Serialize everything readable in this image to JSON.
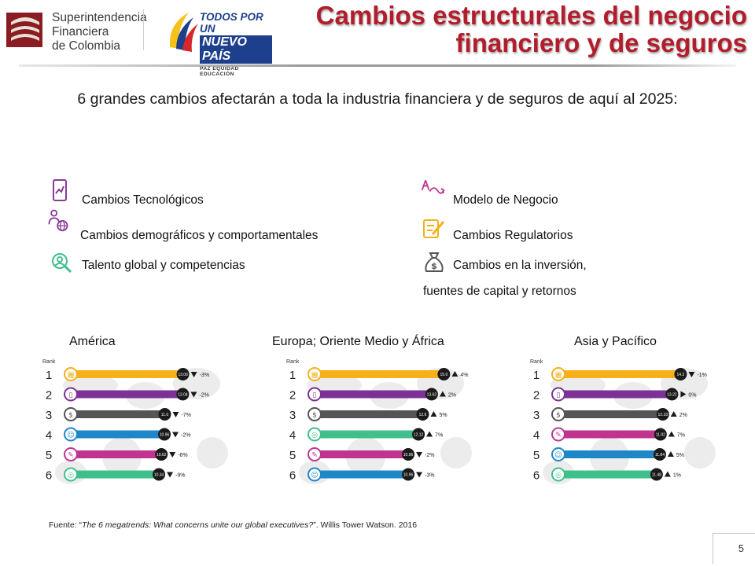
{
  "header": {
    "sfc_logo": {
      "line1": "Superintendencia",
      "line2": "Financiera",
      "line3": "de Colombia"
    },
    "gov_logo": {
      "line1": "TODOS POR UN",
      "line2": "NUEVO PAÍS",
      "line3": "PAZ  EQUIDAD  EDUCACIÓN"
    },
    "title_line1": "Cambios estructurales del negocio",
    "title_line2": "financiero y de seguros"
  },
  "intro": "6 grandes cambios afectarán a toda la industria financiera y de seguros de aquí al 2025:",
  "trends": {
    "left": [
      {
        "label": "Cambios Tecnológicos",
        "icon": "tablet-chart-icon"
      },
      {
        "label": "Cambios demográficos y comportamentales",
        "icon": "people-globe-icon"
      },
      {
        "label": "Talento global y competencias",
        "icon": "talent-search-icon"
      }
    ],
    "right": [
      {
        "label": "Modelo de Negocio",
        "icon": "business-model-icon"
      },
      {
        "label": "Cambios Regulatorios",
        "icon": "regulatory-pen-icon"
      },
      {
        "label": "Cambios en la inversión,",
        "label2": "fuentes de capital y retornos",
        "icon": "money-bag-icon"
      }
    ]
  },
  "colors": {
    "title_red": "#b21d2b",
    "purple_icon": "#8a3a9a",
    "tech": "#f5b01a",
    "model": "#7b3294",
    "invest": "#555555",
    "demo": "#1e87c8",
    "business": "#c0348f",
    "talent": "#3fbf8c"
  },
  "chart_data": [
    {
      "type": "bar",
      "title": "América",
      "rank_label": "Rank",
      "categories": [
        "1",
        "2",
        "3",
        "4",
        "5",
        "6"
      ],
      "icons": [
        "tech",
        "model",
        "invest",
        "demo",
        "business",
        "talent"
      ],
      "values": [
        13.06,
        13.04,
        11.0,
        10.96,
        10.62,
        10.34
      ],
      "value_labels": [
        "13.06",
        "13.04",
        "11.0",
        "10.96",
        "10.62",
        "10.34"
      ],
      "change_labels": [
        "-3%",
        "-2%",
        "-7%",
        "-2%",
        "-6%",
        "-9%"
      ],
      "change_dir": [
        "down",
        "down",
        "down",
        "down",
        "down",
        "down"
      ]
    },
    {
      "type": "bar",
      "title": "Europa; Oriente Medio y África",
      "rank_label": "Rank",
      "categories": [
        "1",
        "2",
        "3",
        "4",
        "5",
        "6"
      ],
      "icons": [
        "tech",
        "model",
        "invest",
        "talent",
        "business",
        "demo"
      ],
      "values": [
        15.0,
        13.62,
        12.6,
        12.12,
        10.96,
        10.96
      ],
      "value_labels": [
        "15.0",
        "13.62",
        "12.6",
        "12.12",
        "10.96",
        "10.96"
      ],
      "change_labels": [
        "4%",
        "2%",
        "5%",
        "7%",
        "-2%",
        "-3%"
      ],
      "change_dir": [
        "up",
        "up",
        "up",
        "up",
        "down",
        "down"
      ]
    },
    {
      "type": "bar",
      "title": "Asia y Pacífico",
      "rank_label": "Rank",
      "categories": [
        "1",
        "2",
        "3",
        "4",
        "5",
        "6"
      ],
      "icons": [
        "tech",
        "model",
        "invest",
        "business",
        "demo",
        "talent"
      ],
      "values": [
        14.2,
        13.22,
        12.18,
        11.92,
        11.84,
        11.48
      ],
      "value_labels": [
        "14.2",
        "13.22",
        "12.18",
        "11.92",
        "11.84",
        "11.48"
      ],
      "change_labels": [
        "-1%",
        "0%",
        "2%",
        "7%",
        "5%",
        "1%"
      ],
      "change_dir": [
        "down",
        "flat",
        "up",
        "up",
        "up",
        "up"
      ]
    }
  ],
  "footer": {
    "source_prefix": "Fuente: “",
    "source_title": "The 6 megatrends: What concerns unite our global executives?",
    "source_suffix": "”. Willis Tower Watson. 2016",
    "page_number": "5"
  }
}
